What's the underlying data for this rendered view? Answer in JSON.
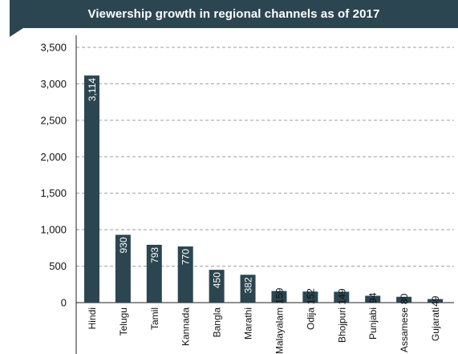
{
  "chart_data": {
    "type": "bar",
    "title": "Viewership growth in regional channels as of 2017",
    "categories": [
      "Hindi",
      "Telugu",
      "Tamil",
      "Kannada",
      "Bangla",
      "Marathi",
      "Malayalam",
      "Odija",
      "Bhojpuri",
      "Punjabi",
      "Assamese",
      "Gujarati"
    ],
    "values": [
      3114,
      930,
      793,
      770,
      450,
      382,
      159,
      152,
      149,
      94,
      80,
      49
    ],
    "data_labels": [
      "3,114",
      "930",
      "793",
      "770",
      "450",
      "382",
      "159",
      "152",
      "149",
      "94",
      "80",
      "49"
    ],
    "y_ticks": [
      "0",
      "500",
      "1,000",
      "1,500",
      "2,000",
      "2,500",
      "3,000",
      "3,500"
    ],
    "ylim": [
      0,
      3500
    ],
    "grid": true,
    "bar_color": "#2b4650",
    "title_bar_color": "#2b4650",
    "grid_color": "#9e9e9e",
    "xlabel": "",
    "ylabel": ""
  }
}
